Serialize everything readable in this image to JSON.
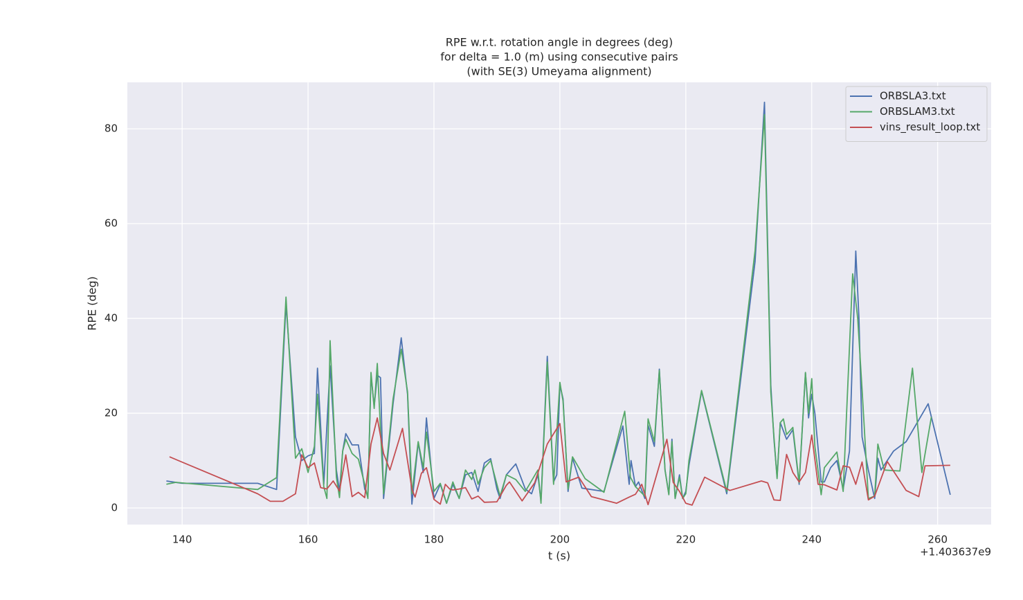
{
  "chart_data": {
    "type": "line",
    "title": [
      "RPE w.r.t. rotation angle in degrees (deg)",
      "for delta = 1.0 (m) using consecutive pairs",
      "(with SE(3) Umeyama alignment)"
    ],
    "x_label": "t (s)",
    "y_label": "RPE (deg)",
    "x_offset_label": "+1.403637e9",
    "xlim": [
      131.3,
      268.5
    ],
    "ylim": [
      -3.5,
      89.8
    ],
    "xticks": [
      140,
      160,
      180,
      200,
      220,
      240,
      260
    ],
    "yticks": [
      0,
      20,
      40,
      60,
      80
    ],
    "grid": true,
    "legend": "upper right",
    "background": "#eaeaf2",
    "series": [
      {
        "name": "ORBSLA3.txt",
        "color": "#4c72b0",
        "x": [
          137.5,
          140,
          152,
          155,
          156.5,
          158,
          159,
          160,
          161,
          161.5,
          162.5,
          163.5,
          164.5,
          165,
          165.5,
          166,
          167,
          168,
          169,
          169.5,
          170,
          170.5,
          171,
          171.5,
          172,
          173.5,
          174.8,
          175.8,
          176.5,
          177.5,
          178.3,
          178.8,
          180,
          181,
          182,
          183,
          184,
          185,
          186,
          187,
          188,
          189,
          190,
          190.5,
          191.5,
          193,
          194.5,
          195.5,
          196.5,
          197,
          198,
          199,
          199.5,
          200,
          200.5,
          201.3,
          202,
          203.5,
          207,
          210,
          211,
          211.3,
          212,
          212.5,
          213.5,
          214,
          215,
          215.8,
          216.7,
          217.3,
          217.8,
          218.3,
          219,
          219.5,
          220,
          220.5,
          222.5,
          226.5,
          231,
          232.5,
          233.5,
          234,
          234.5,
          235,
          236,
          237,
          238,
          239,
          239.5,
          240,
          240.5,
          241.5,
          242,
          243,
          244,
          245,
          246,
          247,
          247.5,
          248,
          249,
          250,
          250.5,
          251,
          253,
          255,
          258.5,
          262
        ],
        "values": [
          5.7,
          5.2,
          5.2,
          3.9,
          43,
          15,
          10,
          11,
          11.5,
          29.5,
          5,
          30,
          8,
          3.5,
          12,
          15.7,
          13.3,
          13.3,
          4,
          2.5,
          28,
          21.5,
          28,
          27.5,
          2,
          22,
          35.9,
          24,
          0.8,
          13.8,
          7.5,
          19,
          2,
          5,
          1,
          5,
          2,
          7,
          7.5,
          3.5,
          9.5,
          10.4,
          4,
          2,
          7,
          9.3,
          4,
          3,
          7,
          1.5,
          32,
          5.5,
          7,
          26,
          23,
          3.5,
          10.5,
          4.2,
          3.5,
          17.3,
          5,
          10,
          4.5,
          5.5,
          2,
          17.5,
          13,
          29.3,
          8,
          3,
          14.5,
          2,
          7,
          2,
          3.5,
          9,
          24.6,
          3,
          52,
          85.6,
          26,
          14.5,
          6.5,
          18,
          14.5,
          16.5,
          5,
          28.5,
          19,
          24,
          20,
          5.5,
          5.5,
          8.5,
          10,
          4,
          12,
          54.2,
          40,
          15,
          8,
          2,
          10.5,
          8,
          12,
          14,
          22,
          2.8
        ]
      },
      {
        "name": "ORBSLAM3.txt",
        "color": "#55a868",
        "x": [
          137.5,
          139,
          152,
          155,
          156.5,
          158,
          159,
          160,
          161,
          161.5,
          162.5,
          163,
          163.5,
          164.5,
          165,
          165.5,
          166,
          167,
          168,
          169,
          169.5,
          170,
          170.5,
          171,
          172,
          173.5,
          174.8,
          175.8,
          176.5,
          177.5,
          178.3,
          178.8,
          180,
          181,
          182,
          183,
          184,
          185,
          186,
          186.5,
          187,
          188,
          189,
          190,
          190.5,
          191.5,
          193,
          194.5,
          196.5,
          197,
          198,
          199,
          200,
          200.5,
          201.3,
          202,
          204,
          207,
          210.3,
          211.2,
          212,
          213.5,
          214,
          215,
          215.8,
          216.7,
          217.3,
          217.8,
          218.3,
          219,
          219.5,
          220,
          220.5,
          222.5,
          226.5,
          231,
          232.5,
          233.5,
          234,
          234.5,
          235,
          235.5,
          236,
          237,
          238,
          239,
          239.5,
          240,
          240.5,
          241.5,
          242,
          244,
          245,
          246.5,
          247.3,
          248,
          249,
          250,
          250.5,
          251.5,
          254,
          256,
          257.5,
          259
        ],
        "values": [
          5,
          5.4,
          3.9,
          6.4,
          44.5,
          10.5,
          12.5,
          7.5,
          13,
          24,
          4.5,
          2,
          35.3,
          6.5,
          2.2,
          12,
          14.5,
          11.5,
          10.3,
          5,
          2,
          28.6,
          21,
          30.5,
          3,
          23,
          33.5,
          24.5,
          3,
          14,
          8.5,
          16,
          3.5,
          5.2,
          1,
          5.5,
          2,
          8,
          6,
          8,
          5,
          8.5,
          10,
          5,
          2.5,
          7,
          6,
          3.5,
          8,
          1,
          30.8,
          5,
          26.5,
          22.5,
          4,
          10.8,
          6.2,
          3.3,
          20.4,
          6.5,
          4.5,
          2.5,
          18.8,
          14,
          29,
          8,
          2.8,
          14,
          2,
          6.5,
          2,
          3,
          10,
          24.8,
          3.5,
          54.3,
          83,
          24.5,
          15,
          6.2,
          18,
          18.8,
          15.5,
          17,
          5.3,
          28.6,
          20,
          27.3,
          13,
          2.8,
          8.5,
          11.8,
          3.5,
          49.4,
          40,
          25,
          2,
          2.5,
          13.5,
          8,
          7.8,
          29.5,
          7.5,
          19.2
        ]
      },
      {
        "name": "vins_result_loop.txt",
        "color": "#c44e52",
        "x": [
          138,
          152,
          154,
          156,
          158,
          159,
          160,
          161,
          162,
          163,
          164,
          165,
          166,
          167,
          168,
          169,
          170,
          171,
          172,
          173,
          175,
          176.5,
          177,
          178,
          178.8,
          180,
          181,
          181.8,
          182.5,
          183,
          184,
          185,
          186,
          187,
          188,
          190,
          191.5,
          192,
          194,
          196,
          198,
          200,
          201,
          203,
          205,
          209,
          211,
          212,
          213,
          214,
          217,
          218,
          219,
          220,
          221,
          223,
          227,
          232,
          233,
          234,
          235,
          236,
          237,
          238,
          239,
          240,
          241,
          242,
          244,
          245,
          246,
          247,
          248,
          249,
          250,
          252,
          255,
          257,
          258,
          262
        ],
        "values": [
          10.8,
          3,
          1.4,
          1.4,
          3,
          11.2,
          8.5,
          9.5,
          4.3,
          4,
          5.7,
          3.6,
          11.2,
          2.4,
          3.3,
          2.2,
          13.5,
          19,
          11.5,
          8,
          16.8,
          4,
          2.3,
          7.3,
          8.5,
          1.8,
          0.8,
          5,
          4,
          3.8,
          4,
          4.3,
          1.9,
          2.5,
          1.2,
          1.3,
          4.8,
          5.5,
          1.5,
          5.3,
          13.5,
          17.8,
          5.5,
          6.5,
          2.4,
          1,
          2.3,
          2.9,
          5,
          0.7,
          14.5,
          5.4,
          3.5,
          1,
          0.6,
          6.5,
          3.7,
          5.7,
          5.3,
          1.7,
          1.6,
          11.3,
          7.5,
          5.5,
          7.5,
          15.4,
          5,
          4.9,
          3.8,
          8.9,
          8.6,
          5,
          9.7,
          1.7,
          2.5,
          9.8,
          3.7,
          2.4,
          8.9,
          9
        ]
      }
    ]
  }
}
